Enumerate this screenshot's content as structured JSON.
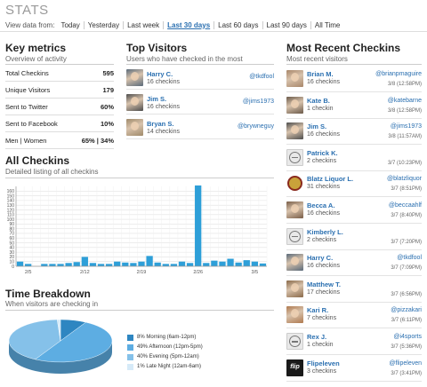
{
  "header": {
    "title": "STATS",
    "view_label": "View data from:",
    "options": [
      "Today",
      "Yesterday",
      "Last week",
      "Last 30 days",
      "Last 60 days",
      "Last 90 days",
      "All Time"
    ],
    "active_option": "Last 30 days"
  },
  "key_metrics": {
    "title": "Key metrics",
    "subtitle": "Overview of activity",
    "rows": [
      {
        "label": "Total Checkins",
        "value": "595"
      },
      {
        "label": "Unique Visitors",
        "value": "179"
      },
      {
        "label": "Sent to Twitter",
        "value": "60%"
      },
      {
        "label": "Sent to Facebook",
        "value": "10%"
      },
      {
        "label": "Men | Women",
        "value": "65% | 34%"
      }
    ]
  },
  "top_visitors": {
    "title": "Top Visitors",
    "subtitle": "Users who have checked in the most",
    "rows": [
      {
        "name": "Harry C.",
        "count": "16 checkins",
        "handle": "@tkdfool"
      },
      {
        "name": "Jim S.",
        "count": "16 checkins",
        "handle": "@jims1973"
      },
      {
        "name": "Bryan S.",
        "count": "14 checkins",
        "handle": "@brywneguy"
      }
    ]
  },
  "recent_checkins": {
    "title": "Most Recent Checkins",
    "subtitle": "Most recent visitors",
    "rows": [
      {
        "name": "Brian M.",
        "count": "16 checkins",
        "handle": "@brianpmaguire",
        "time": "3/8 (12:58PM)",
        "avatar": "photo",
        "color": "#a9876a"
      },
      {
        "name": "Kate B.",
        "count": "1 checkin",
        "handle": "@katebarne",
        "time": "3/8 (12:58PM)",
        "avatar": "photo",
        "color": "#6b5a4a"
      },
      {
        "name": "Jim S.",
        "count": "16 checkins",
        "handle": "@jims1973",
        "time": "3/8 (11:57AM)",
        "avatar": "photo",
        "color": "#4d4d4d"
      },
      {
        "name": "Patrick K.",
        "count": "2 checkins",
        "handle": "",
        "time": "3/7 (10:23PM)",
        "avatar": "default",
        "color": "#dddddd"
      },
      {
        "name": "Blatz Liquor L.",
        "count": "31 checkins",
        "handle": "@blatzliquor",
        "time": "3/7 (8:51PM)",
        "avatar": "logo",
        "color": "#c9a23a"
      },
      {
        "name": "Becca A.",
        "count": "16 checkins",
        "handle": "@beccaahlf",
        "time": "3/7 (8:40PM)",
        "avatar": "photo",
        "color": "#7a5e48"
      },
      {
        "name": "Kimberly L.",
        "count": "2 checkins",
        "handle": "",
        "time": "3/7 (7:20PM)",
        "avatar": "default",
        "color": "#dddddd"
      },
      {
        "name": "Harry C.",
        "count": "16 checkins",
        "handle": "@tkdfool",
        "time": "3/7 (7:09PM)",
        "avatar": "photo",
        "color": "#5a6a7a"
      },
      {
        "name": "Matthew T.",
        "count": "17 checkins",
        "handle": "",
        "time": "3/7 (6:56PM)",
        "avatar": "photo",
        "color": "#8a6a4a"
      },
      {
        "name": "Kari R.",
        "count": "7 checkins",
        "handle": "@pizzakari",
        "time": "3/7 (6:11PM)",
        "avatar": "photo",
        "color": "#b07a50"
      },
      {
        "name": "Rex J.",
        "count": "1 checkin",
        "handle": "@i4sports",
        "time": "3/7 (5:36PM)",
        "avatar": "default",
        "color": "#dddddd"
      },
      {
        "name": "Flipeleven",
        "count": "3 checkins",
        "handle": "@flipeleven",
        "time": "3/7 (3:41PM)",
        "avatar": "logo-flip",
        "color": "#1a1a1a"
      }
    ]
  },
  "all_checkins": {
    "title": "All Checkins",
    "subtitle": "Detailed listing of all checkins"
  },
  "time_breakdown": {
    "title": "Time Breakdown",
    "subtitle": "When visitors are checking in",
    "legend": [
      {
        "label": "8% Morning (6am-12pm)",
        "color": "#2e86c1"
      },
      {
        "label": "49% Afternoon (12pm-5pm)",
        "color": "#5dade2"
      },
      {
        "label": "40% Evening (5pm-12am)",
        "color": "#85c1e9"
      },
      {
        "label": "1% Late Night (12am-6am)",
        "color": "#d6eaf8"
      }
    ]
  },
  "chart_data": [
    {
      "type": "bar",
      "color": "#2e9fd8",
      "x_tick_labels": [
        "2/5",
        "2/12",
        "2/19",
        "2/26",
        "3/5"
      ],
      "x_tick_index": [
        1,
        8,
        15,
        22,
        29
      ],
      "values": [
        10,
        5,
        0,
        5,
        5,
        5,
        7,
        9,
        20,
        7,
        5,
        5,
        10,
        8,
        7,
        10,
        22,
        8,
        5,
        5,
        10,
        7,
        172,
        7,
        12,
        10,
        16,
        8,
        13,
        10,
        6
      ],
      "ylim": [
        0,
        170
      ],
      "yticks": [
        0,
        10,
        20,
        30,
        40,
        50,
        60,
        70,
        80,
        90,
        100,
        110,
        120,
        130,
        140,
        150,
        160
      ],
      "grid": true
    },
    {
      "type": "pie",
      "labels": [
        "Morning (6am-12pm)",
        "Afternoon (12pm-5pm)",
        "Evening (5pm-12am)",
        "Late Night (12am-6am)"
      ],
      "values": [
        8,
        49,
        40,
        1
      ],
      "colors": [
        "#2e86c1",
        "#5dade2",
        "#85c1e9",
        "#d6eaf8"
      ]
    }
  ]
}
